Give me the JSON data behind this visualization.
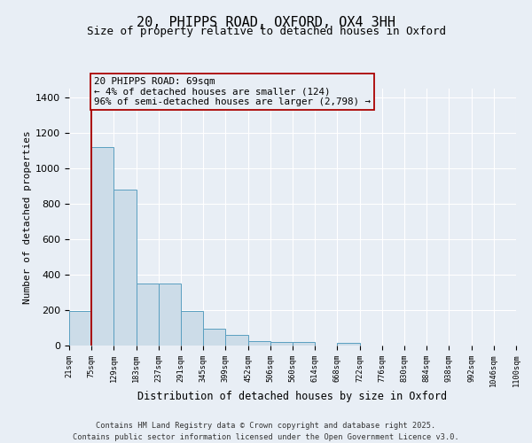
{
  "title_line1": "20, PHIPPS ROAD, OXFORD, OX4 3HH",
  "title_line2": "Size of property relative to detached houses in Oxford",
  "xlabel": "Distribution of detached houses by size in Oxford",
  "ylabel": "Number of detached properties",
  "bin_labels": [
    "21sqm",
    "75sqm",
    "129sqm",
    "183sqm",
    "237sqm",
    "291sqm",
    "345sqm",
    "399sqm",
    "452sqm",
    "506sqm",
    "560sqm",
    "614sqm",
    "668sqm",
    "722sqm",
    "776sqm",
    "830sqm",
    "884sqm",
    "938sqm",
    "992sqm",
    "1046sqm",
    "1100sqm"
  ],
  "bar_values": [
    195,
    1120,
    880,
    350,
    350,
    195,
    95,
    60,
    25,
    20,
    18,
    0,
    15,
    0,
    0,
    0,
    0,
    0,
    0,
    0
  ],
  "bar_color": "#ccdce8",
  "bar_edge_color": "#5a9fc0",
  "ylim": [
    0,
    1450
  ],
  "yticks": [
    0,
    200,
    400,
    600,
    800,
    1000,
    1200,
    1400
  ],
  "annotation_text": "20 PHIPPS ROAD: 69sqm\n← 4% of detached houses are smaller (124)\n96% of semi-detached houses are larger (2,798) →",
  "vline_color": "#aa0000",
  "box_color": "#aa0000",
  "background_color": "#e8eef5",
  "grid_color": "#ffffff",
  "footer_line1": "Contains HM Land Registry data © Crown copyright and database right 2025.",
  "footer_line2": "Contains public sector information licensed under the Open Government Licence v3.0."
}
